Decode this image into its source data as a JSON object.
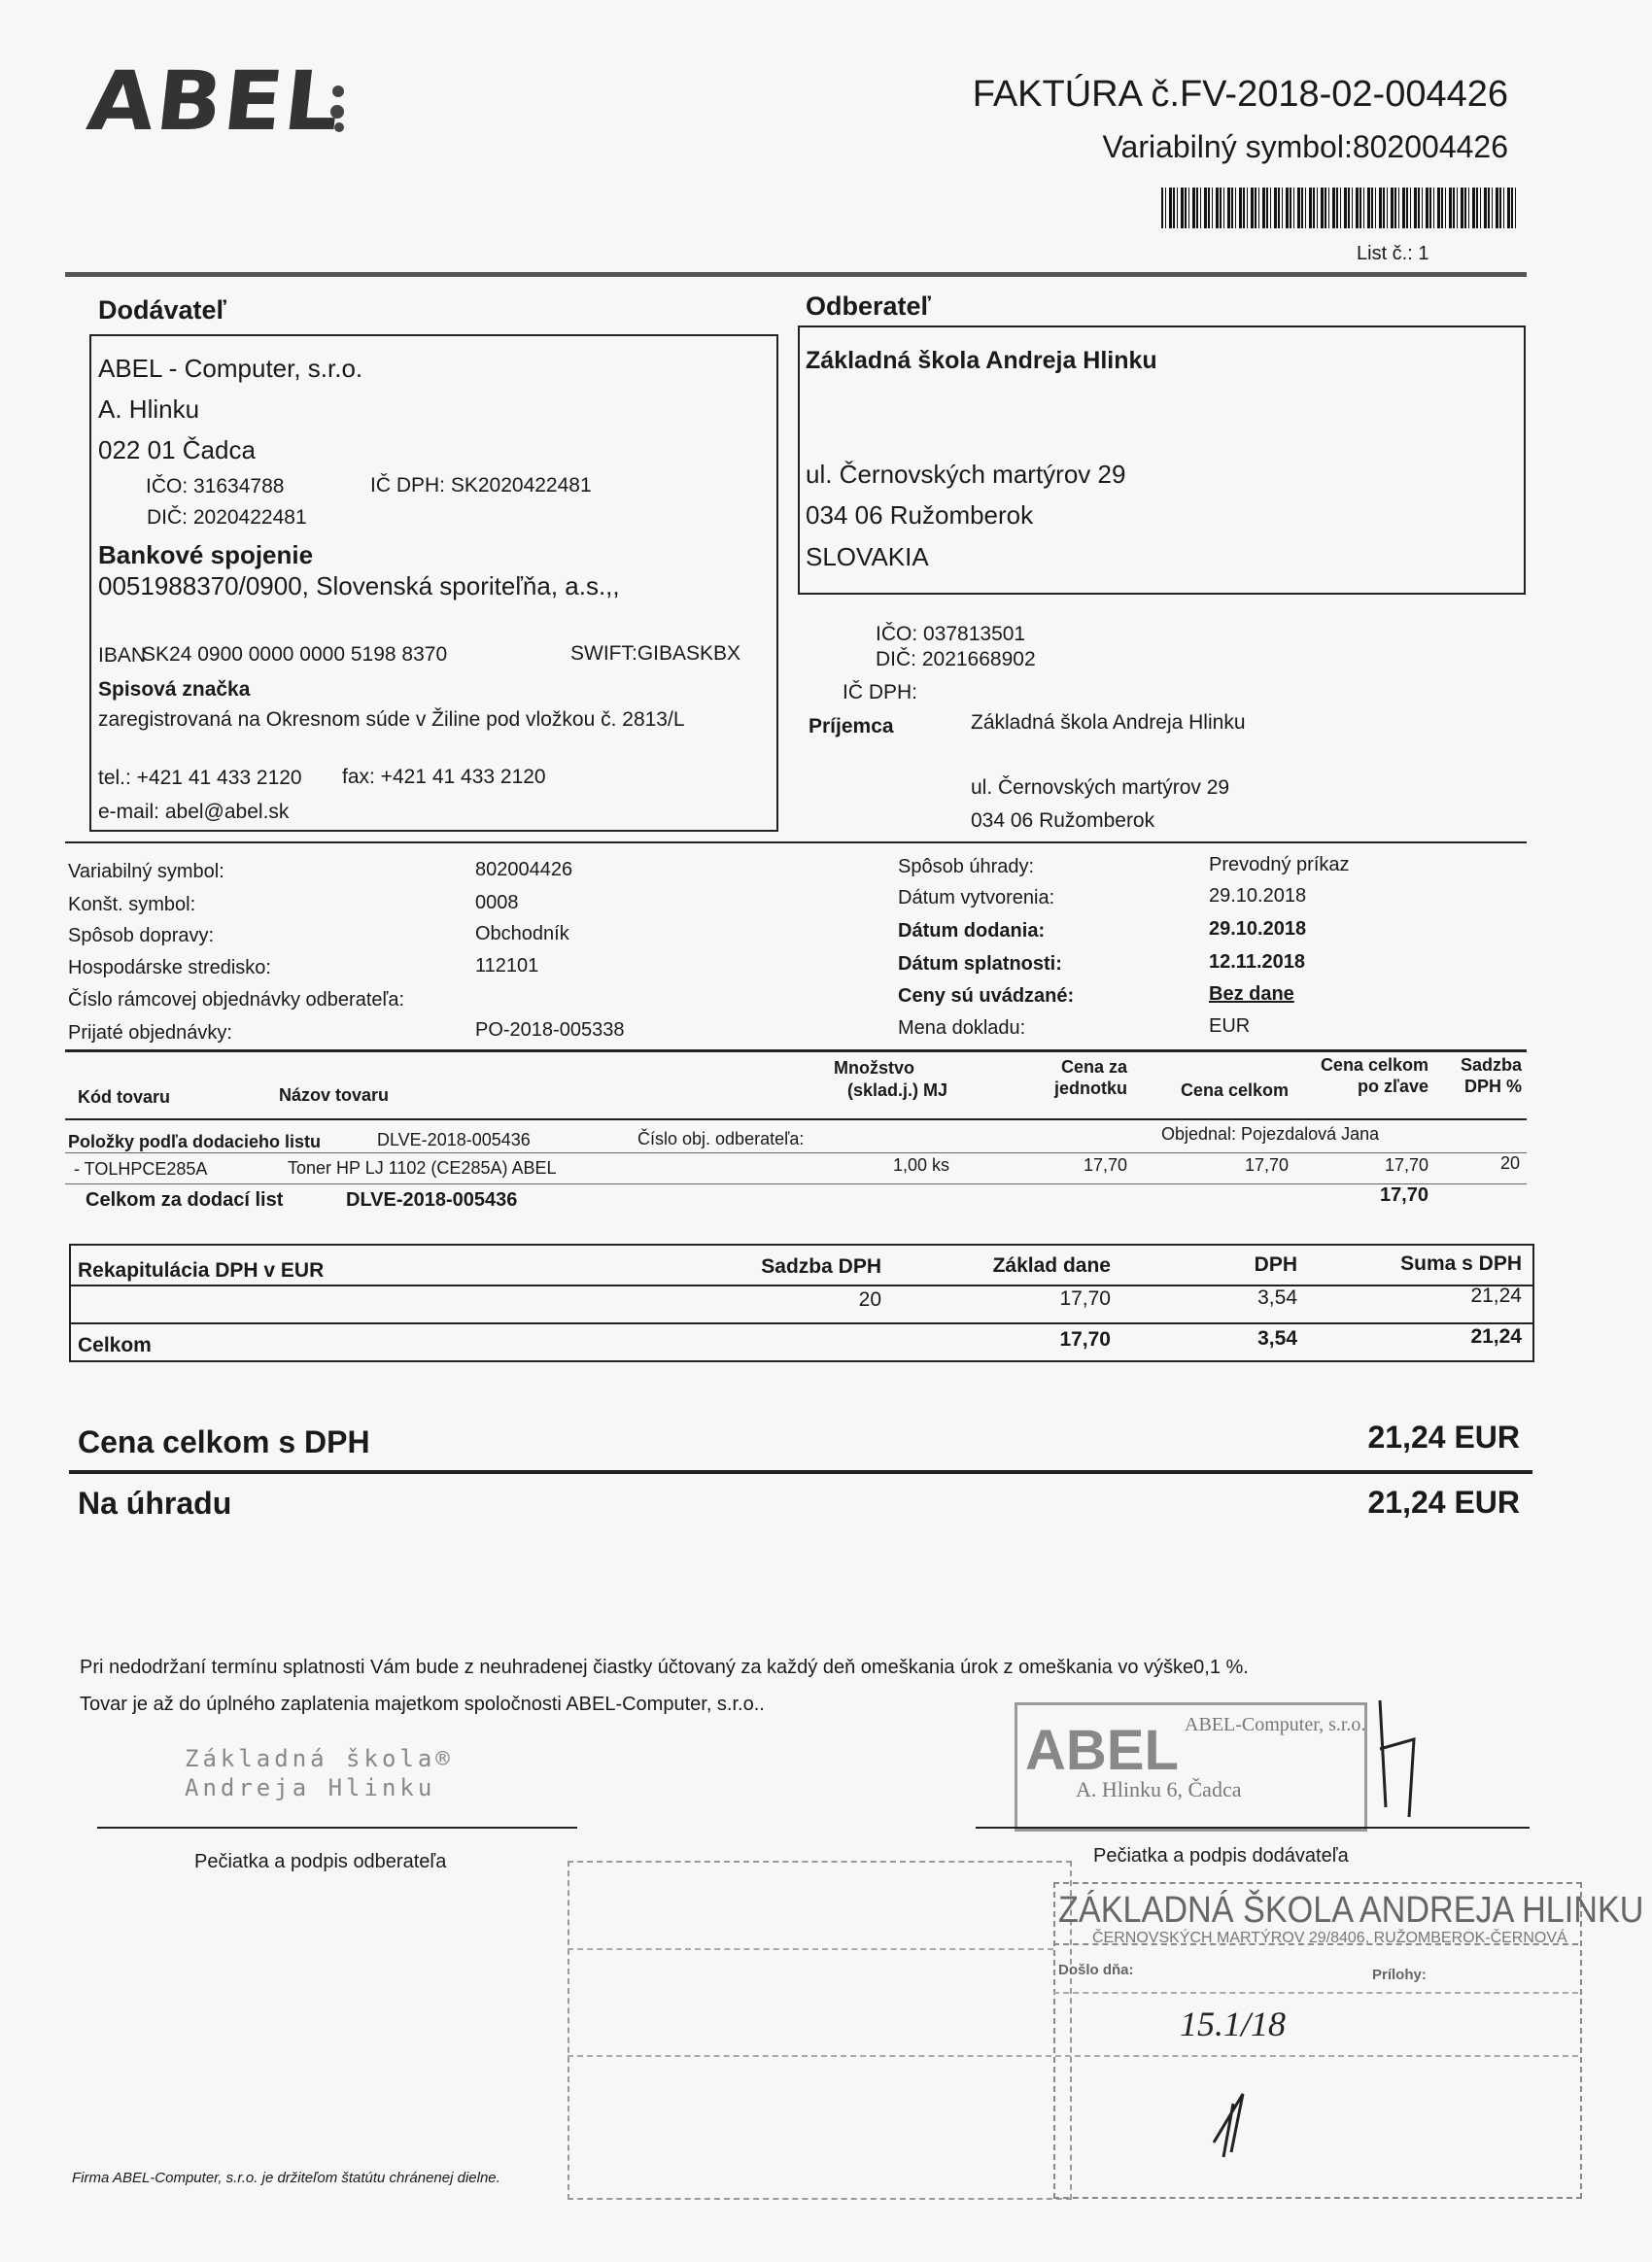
{
  "header": {
    "logo_text": "ABEL",
    "title": "FAKTÚRA č.FV-2018-02-004426",
    "variable_symbol": "Variabilný symbol:802004426",
    "page": "List č.: 1"
  },
  "supplier": {
    "heading": "Dodávateľ",
    "name": "ABEL - Computer, s.r.o.",
    "street": "A. Hlinku",
    "city": "022 01 Čadca",
    "ico": "IČO: 31634788",
    "icdph": "IČ DPH: SK2020422481",
    "dic": "DIČ: 2020422481",
    "bank_heading": "Bankové spojenie",
    "bank": "0051988370/0900, Slovenská sporiteľňa, a.s.,,",
    "iban_label": "IBAN",
    "iban": "SK24 0900 0000 0000 5198 8370",
    "swift": "SWIFT:GIBASKBX",
    "reg_heading": "Spisová značka",
    "reg": "zaregistrovaná na Okresnom súde v Žiline pod vložkou č. 2813/L",
    "tel": "tel.: +421 41 433 2120",
    "fax": "fax: +421 41 433 2120",
    "email": "e-mail: abel@abel.sk"
  },
  "customer": {
    "heading": "Odberateľ",
    "name": "Základná škola Andreja Hlinku",
    "street": "ul. Černovských martýrov 29",
    "city": "034 06 Ružomberok",
    "country": "SLOVAKIA",
    "ico": "IČO: 037813501",
    "dic": "DIČ: 2021668902",
    "icdph": "IČ DPH:",
    "recipient_label": "Príjemca",
    "recipient_name": "Základná škola Andreja Hlinku",
    "recipient_street": "ul. Černovských martýrov 29",
    "recipient_city": "034 06 Ružomberok"
  },
  "info_left": [
    {
      "label": "Variabilný symbol:",
      "value": "802004426"
    },
    {
      "label": "Konšt. symbol:",
      "value": "0008"
    },
    {
      "label": "Spôsob dopravy:",
      "value": "Obchodník"
    },
    {
      "label": "Hospodárske stredisko:",
      "value": "112101"
    },
    {
      "label": "Číslo rámcovej objednávky odberateľa:",
      "value": ""
    },
    {
      "label": "Prijaté objednávky:",
      "value": "PO-2018-005338"
    }
  ],
  "info_right": [
    {
      "label": "Spôsob úhrady:",
      "value": "Prevodný príkaz"
    },
    {
      "label": "Dátum vytvorenia:",
      "value": "29.10.2018"
    },
    {
      "label": "Dátum dodania:",
      "value": "29.10.2018"
    },
    {
      "label": "Dátum splatnosti:",
      "value": "12.11.2018"
    },
    {
      "label": "Ceny sú uvádzané:",
      "value": "Bez dane"
    },
    {
      "label": "Mena dokladu:",
      "value": "EUR"
    }
  ],
  "items_table": {
    "headers": {
      "code": "Kód tovaru",
      "name": "Názov tovaru",
      "qty1": "Množstvo",
      "qty2": "(sklad.j.) MJ",
      "unit1": "Cena za",
      "unit2": "jednotku",
      "total": "Cena celkom",
      "disc1": "Cena celkom",
      "disc2": "po zľave",
      "vat1": "Sadzba",
      "vat2": "DPH %"
    },
    "group_label": "Položky podľa dodacieho listu",
    "group_doc": "DLVE-2018-005436",
    "group_order_label": "Číslo obj. odberateľa:",
    "group_ordered_by": "Objednal:  Pojezdalová Jana",
    "rows": [
      {
        "code": "- TOLHPCE285A",
        "name": "Toner HP LJ 1102  (CE285A) ABEL",
        "qty": "1,00 ks",
        "unit": "17,70",
        "total": "17,70",
        "discounted": "17,70",
        "vat": "20"
      }
    ],
    "subtotal_label": "Celkom za dodací list",
    "subtotal_doc": "DLVE-2018-005436",
    "subtotal_value": "17,70"
  },
  "vat_recap": {
    "title": "Rekapitulácia DPH v EUR",
    "col_rate": "Sadzba DPH",
    "col_base": "Základ dane",
    "col_vat": "DPH",
    "col_sum": "Suma s DPH",
    "rows": [
      {
        "rate": "20",
        "base": "17,70",
        "vat": "3,54",
        "sum": "21,24"
      }
    ],
    "total_label": "Celkom",
    "total_base": "17,70",
    "total_vat": "3,54",
    "total_sum": "21,24"
  },
  "totals": {
    "with_vat_label": "Cena celkom s DPH",
    "with_vat_value": "21,24 EUR",
    "to_pay_label": "Na úhradu",
    "to_pay_value": "21,24 EUR"
  },
  "footer": {
    "note1": "Pri nedodržaní termínu splatnosti Vám bude z neuhradenej čiastky účtovaný za každý deň omeškania úrok z omeškania vo výške0,1 %.",
    "note2": "Tovar je až do úplného zaplatenia majetkom spoločnosti ABEL-Computer, s.r.o..",
    "customer_stamp_line1": "Základná škola®",
    "customer_stamp_line2": "Andreja Hlinku",
    "customer_sign_label": "Pečiatka a podpis odberateľa",
    "supplier_stamp_line1": "ABEL-Computer, s.r.o.",
    "supplier_stamp_line2": "A. Hlinku 6, Čadca",
    "supplier_sign_label": "Pečiatka a podpis dodávateľa",
    "registry_stamp_title": "ZÁKLADNÁ ŠKOLA ANDREJA HLINKU",
    "registry_stamp_address": "ČERNOVSKÝCH MARTÝROV 29/8406, RUŽOMBEROK-ČERNOVÁ",
    "registry_received": "Došlo dňa:",
    "registry_attachments": "Prílohy:",
    "registry_date_handwritten": "15.1/18",
    "legal_note": "Firma ABEL-Computer, s.r.o. je držiteľom štatútu chránenej dielne."
  }
}
